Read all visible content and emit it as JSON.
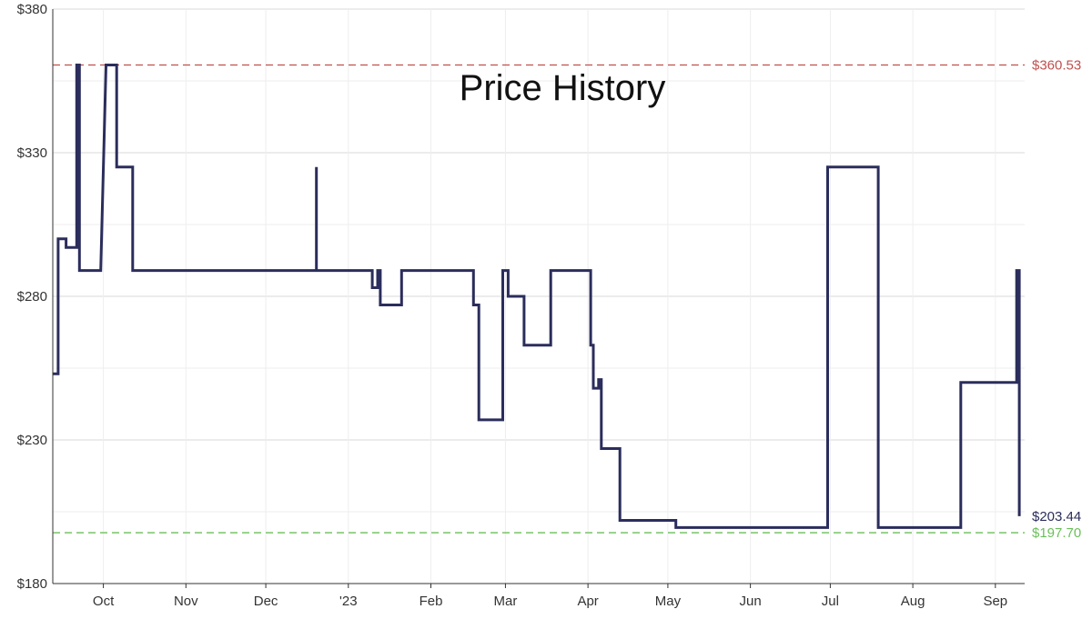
{
  "chart_data": {
    "type": "line",
    "title": "Price History",
    "xlabel": "",
    "ylabel": "",
    "y_tick_labels": [
      "$380",
      "$330",
      "$280",
      "$230",
      "$180"
    ],
    "y_ticks": [
      380,
      330,
      280,
      230,
      180
    ],
    "ylim": [
      180,
      380
    ],
    "x_tick_labels": [
      "Oct",
      "Nov",
      "Dec",
      "'23",
      "Feb",
      "Mar",
      "Apr",
      "May",
      "Jun",
      "Jul",
      "Aug",
      "Sep"
    ],
    "x_ticks": [
      "2022-10-01",
      "2022-11-01",
      "2022-12-01",
      "2023-01-01",
      "2023-02-01",
      "2023-03-01",
      "2023-04-01",
      "2023-05-01",
      "2023-06-01",
      "2023-07-01",
      "2023-08-01",
      "2023-09-01"
    ],
    "xlim": [
      "2022-09-12",
      "2023-09-12"
    ],
    "grid": true,
    "series": [
      {
        "color": "#2b2d5c",
        "points": [
          [
            "2022-09-12",
            253
          ],
          [
            "2022-09-14",
            253
          ],
          [
            "2022-09-14",
            300
          ],
          [
            "2022-09-17",
            300
          ],
          [
            "2022-09-17",
            297
          ],
          [
            "2022-09-21",
            297
          ],
          [
            "2022-09-21",
            360.53
          ],
          [
            "2022-09-22",
            360.53
          ],
          [
            "2022-09-22",
            289
          ],
          [
            "2022-09-30",
            289
          ],
          [
            "2022-10-02",
            360.53
          ],
          [
            "2022-10-06",
            360.53
          ],
          [
            "2022-10-06",
            325
          ],
          [
            "2022-10-12",
            325
          ],
          [
            "2022-10-12",
            289
          ],
          [
            "2022-12-20",
            289
          ],
          [
            "2022-12-20",
            325
          ],
          [
            "2022-12-20",
            289
          ],
          [
            "2023-01-10",
            289
          ],
          [
            "2023-01-10",
            283
          ],
          [
            "2023-01-12",
            283
          ],
          [
            "2023-01-12",
            289
          ],
          [
            "2023-01-13",
            289
          ],
          [
            "2023-01-13",
            277
          ],
          [
            "2023-01-21",
            277
          ],
          [
            "2023-01-21",
            289
          ],
          [
            "2023-02-17",
            289
          ],
          [
            "2023-02-17",
            277
          ],
          [
            "2023-02-19",
            277
          ],
          [
            "2023-02-19",
            237
          ],
          [
            "2023-02-28",
            237
          ],
          [
            "2023-02-28",
            289
          ],
          [
            "2023-03-02",
            289
          ],
          [
            "2023-03-02",
            280
          ],
          [
            "2023-03-08",
            280
          ],
          [
            "2023-03-08",
            263
          ],
          [
            "2023-03-18",
            263
          ],
          [
            "2023-03-18",
            289
          ],
          [
            "2023-04-02",
            289
          ],
          [
            "2023-04-02",
            263
          ],
          [
            "2023-04-03",
            263
          ],
          [
            "2023-04-03",
            248
          ],
          [
            "2023-04-05",
            248
          ],
          [
            "2023-04-05",
            251
          ],
          [
            "2023-04-06",
            251
          ],
          [
            "2023-04-06",
            227
          ],
          [
            "2023-04-13",
            227
          ],
          [
            "2023-04-13",
            202
          ],
          [
            "2023-05-04",
            202
          ],
          [
            "2023-05-04",
            199.5
          ],
          [
            "2023-06-30",
            199.5
          ],
          [
            "2023-06-30",
            325
          ],
          [
            "2023-07-19",
            325
          ],
          [
            "2023-07-19",
            199.5
          ],
          [
            "2023-08-19",
            199.5
          ],
          [
            "2023-08-19",
            250
          ],
          [
            "2023-09-09",
            250
          ],
          [
            "2023-09-09",
            289
          ],
          [
            "2023-09-10",
            289
          ],
          [
            "2023-09-10",
            203.44
          ]
        ]
      }
    ],
    "reference_lines": [
      {
        "label": "$360.53",
        "value": 360.53,
        "color": "#c0504d"
      },
      {
        "label": "$197.70",
        "value": 197.7,
        "color": "#6abf59"
      }
    ],
    "current_price_label": {
      "label": "$203.44",
      "value": 203.44,
      "color": "#2b2d5c"
    }
  }
}
